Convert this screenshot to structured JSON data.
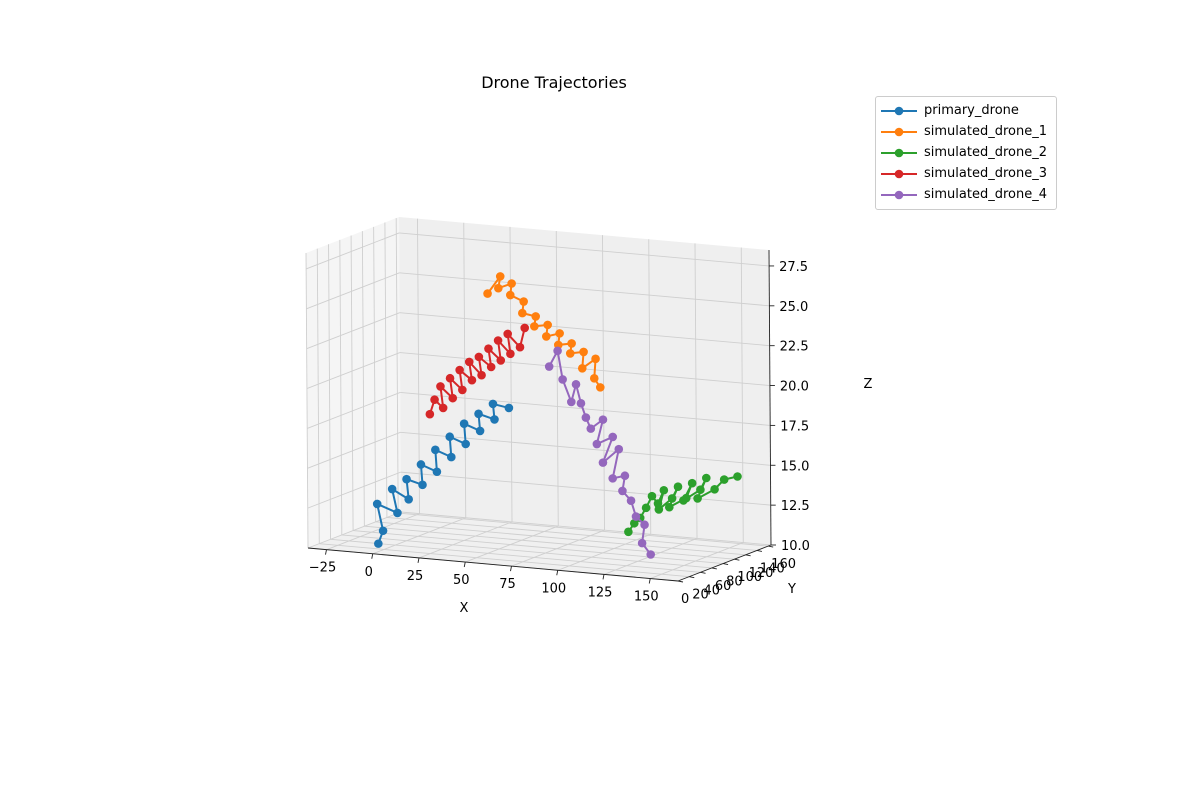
{
  "chart_data": {
    "type": "line",
    "projection": "3d",
    "title": "Drone Trajectories",
    "xlabel": "X",
    "ylabel": "Y",
    "zlabel": "Z",
    "xlim": [
      -35,
      165
    ],
    "ylim": [
      0,
      165
    ],
    "zlim": [
      10,
      28.5
    ],
    "x_ticks": [
      "−25",
      "0",
      "25",
      "50",
      "75",
      "100",
      "125",
      "150"
    ],
    "y_ticks": [
      "0",
      "20",
      "40",
      "60",
      "80",
      "100",
      "120",
      "140",
      "160"
    ],
    "z_ticks": [
      "10.0",
      "12.5",
      "15.0",
      "17.5",
      "20.0",
      "22.5",
      "25.0",
      "27.5"
    ],
    "grid": true,
    "legend_position": "upper-right, outside",
    "markers": "circle",
    "series": [
      {
        "name": "primary_drone",
        "color": "#1f77b4",
        "points": [
          [
            0,
            10,
            10.5
          ],
          [
            2,
            12,
            11.3
          ],
          [
            -2,
            15,
            12.9
          ],
          [
            8,
            18,
            12.4
          ],
          [
            4,
            22,
            13.8
          ],
          [
            12,
            25,
            13.2
          ],
          [
            10,
            28,
            14.4
          ],
          [
            18,
            30,
            14.1
          ],
          [
            16,
            34,
            15.3
          ],
          [
            24,
            36,
            14.9
          ],
          [
            22,
            40,
            16.2
          ],
          [
            30,
            42,
            15.8
          ],
          [
            28,
            46,
            17.0
          ],
          [
            36,
            48,
            16.6
          ],
          [
            34,
            52,
            17.8
          ],
          [
            42,
            54,
            17.4
          ],
          [
            40,
            58,
            18.4
          ],
          [
            48,
            60,
            18.1
          ],
          [
            46,
            64,
            19.0
          ],
          [
            54,
            66,
            18.8
          ]
        ]
      },
      {
        "name": "simulated_drone_1",
        "color": "#ff7f0e",
        "points": [
          [
            60,
            10,
            26.8
          ],
          [
            66,
            13,
            27.9
          ],
          [
            64,
            16,
            27.1
          ],
          [
            70,
            20,
            27.4
          ],
          [
            68,
            24,
            26.6
          ],
          [
            74,
            28,
            26.2
          ],
          [
            72,
            32,
            25.4
          ],
          [
            78,
            36,
            25.2
          ],
          [
            76,
            40,
            24.5
          ],
          [
            82,
            44,
            24.6
          ],
          [
            80,
            48,
            23.8
          ],
          [
            86,
            52,
            24.0
          ],
          [
            84,
            56,
            23.2
          ],
          [
            90,
            60,
            23.3
          ],
          [
            88,
            64,
            22.6
          ],
          [
            94,
            68,
            22.7
          ],
          [
            92,
            72,
            21.6
          ],
          [
            98,
            76,
            22.2
          ],
          [
            96,
            80,
            20.9
          ],
          [
            98,
            84,
            20.3
          ]
        ]
      },
      {
        "name": "simulated_drone_2",
        "color": "#2ca02c",
        "points": [
          [
            120,
            60,
            11.8
          ],
          [
            122,
            64,
            12.3
          ],
          [
            124,
            68,
            12.6
          ],
          [
            126,
            72,
            13.2
          ],
          [
            128,
            76,
            13.9
          ],
          [
            130,
            80,
            13.4
          ],
          [
            132,
            84,
            14.2
          ],
          [
            128,
            88,
            12.9
          ],
          [
            134,
            92,
            13.6
          ],
          [
            136,
            96,
            14.3
          ],
          [
            130,
            100,
            12.9
          ],
          [
            138,
            104,
            13.5
          ],
          [
            140,
            108,
            14.4
          ],
          [
            134,
            112,
            13.2
          ],
          [
            142,
            116,
            13.9
          ],
          [
            144,
            120,
            14.6
          ],
          [
            138,
            124,
            13.2
          ],
          [
            146,
            128,
            13.8
          ],
          [
            150,
            132,
            14.4
          ],
          [
            156,
            136,
            14.6
          ]
        ]
      },
      {
        "name": "simulated_drone_3",
        "color": "#d62728",
        "points": [
          [
            10,
            70,
            17.9
          ],
          [
            12,
            72,
            18.8
          ],
          [
            16,
            74,
            18.3
          ],
          [
            14,
            76,
            19.6
          ],
          [
            20,
            78,
            18.9
          ],
          [
            18,
            80,
            20.1
          ],
          [
            24,
            82,
            19.4
          ],
          [
            22,
            84,
            20.6
          ],
          [
            28,
            86,
            20.0
          ],
          [
            26,
            88,
            21.1
          ],
          [
            32,
            90,
            20.3
          ],
          [
            30,
            92,
            21.4
          ],
          [
            36,
            94,
            20.8
          ],
          [
            34,
            96,
            21.9
          ],
          [
            40,
            98,
            21.2
          ],
          [
            38,
            100,
            22.4
          ],
          [
            44,
            102,
            21.6
          ],
          [
            42,
            104,
            22.8
          ],
          [
            48,
            106,
            22.0
          ],
          [
            50,
            108,
            23.2
          ]
        ]
      },
      {
        "name": "simulated_drone_4",
        "color": "#9467bd",
        "points": [
          [
            90,
            20,
            22.4
          ],
          [
            94,
            22,
            23.4
          ],
          [
            96,
            24,
            21.6
          ],
          [
            100,
            26,
            20.2
          ],
          [
            102,
            28,
            21.3
          ],
          [
            104,
            30,
            20.1
          ],
          [
            106,
            32,
            19.2
          ],
          [
            108,
            34,
            18.5
          ],
          [
            114,
            36,
            19.1
          ],
          [
            110,
            38,
            17.5
          ],
          [
            118,
            40,
            18.0
          ],
          [
            112,
            42,
            16.3
          ],
          [
            120,
            44,
            17.2
          ],
          [
            116,
            46,
            15.3
          ],
          [
            122,
            48,
            15.5
          ],
          [
            120,
            50,
            14.5
          ],
          [
            124,
            52,
            13.9
          ],
          [
            126,
            54,
            12.9
          ],
          [
            130,
            56,
            12.4
          ],
          [
            128,
            58,
            11.2
          ],
          [
            132,
            60,
            10.5
          ]
        ]
      }
    ]
  }
}
